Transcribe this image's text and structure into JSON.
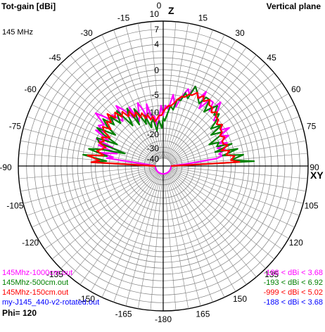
{
  "header": {
    "title_left": "Tot-gain [dBi]",
    "title_right": "Vertical plane",
    "frequency": "145 MHz"
  },
  "axes": {
    "z_label": "Z",
    "xy_label": "XY",
    "angle_labels": [
      "0",
      "15",
      "30",
      "45",
      "60",
      "75",
      "90",
      "105",
      "120",
      "135",
      "150",
      "165",
      "-180",
      "-165",
      "-150",
      "-135",
      "-120",
      "-105",
      "-90",
      "-75",
      "-60",
      "-45",
      "-30",
      "-15"
    ],
    "gain_ticks": [
      "10",
      "7",
      "4",
      "0",
      "-5",
      "-10",
      "-20",
      "-30",
      "-40"
    ]
  },
  "legend": [
    {
      "name": "145Mhz-1000cm.out",
      "range": "-188 < dBi < 3.68",
      "color": "#ff00ff"
    },
    {
      "name": "145Mhz-500cm.out",
      "range": "-193 < dBi < 6.92",
      "color": "#008000"
    },
    {
      "name": "145Mhz-150cm.out",
      "range": "-999 < dBi < 5.02",
      "color": "#ff0000"
    },
    {
      "name": "my-J145_440-v2-rotated.out",
      "range": "-188 < dBi < 3.68",
      "color": "#0000ff"
    }
  ],
  "footer": {
    "phi": "Phi= 120"
  },
  "chart_data": {
    "type": "line",
    "subtype": "polar",
    "title": "Tot-gain [dBi]",
    "subtitle": "Vertical plane",
    "angle_unit": "deg",
    "zero_direction": "top (Z)",
    "radial_ticks_dbi": [
      10,
      7,
      4,
      0,
      -5,
      -10,
      -20,
      -30,
      -40
    ],
    "grid": true,
    "legend_placement": "bottom",
    "series": [
      {
        "name": "145Mhz-1000cm.out",
        "color": "#ff00ff",
        "angles": [
          -90,
          -85,
          -82,
          -80,
          -78,
          -75,
          -72,
          -70,
          -68,
          -65,
          -62,
          -60,
          -58,
          -55,
          -52,
          -50,
          -48,
          -45,
          -42,
          -40,
          -38,
          -35,
          -32,
          -30,
          -28,
          -25,
          -22,
          -20,
          -18,
          -15,
          -12,
          -10,
          -8,
          -5,
          -2,
          0,
          2,
          5,
          8,
          10,
          12,
          15,
          18,
          20,
          22,
          25,
          28,
          30,
          32,
          35,
          38,
          40,
          42,
          45,
          48,
          50,
          52,
          55,
          58,
          60,
          62,
          65,
          68,
          70,
          72,
          75,
          78,
          80,
          82,
          85,
          90,
          95,
          100,
          110,
          120,
          130,
          140,
          150,
          160,
          170,
          180,
          -170,
          -160,
          -150,
          -140,
          -130,
          -120,
          -110,
          -100,
          -95
        ],
        "gain": [
          -40,
          -30,
          -6,
          -8,
          -4,
          -9,
          -3,
          -7,
          -2,
          -5,
          -1,
          -3,
          -1,
          -2,
          1,
          -1,
          -3,
          -2,
          -5,
          -4,
          -1,
          -3,
          -6,
          -3,
          -8,
          -6,
          -3,
          -5,
          -8,
          -4,
          -10,
          -8,
          -12,
          -9,
          -5,
          -8,
          -5,
          -6,
          -2,
          -4,
          -5,
          -2,
          0,
          -1,
          1,
          0,
          -1,
          1,
          -3,
          0,
          0,
          -2,
          1,
          -1,
          -3,
          -2,
          -3,
          -2,
          -3,
          -1,
          -4,
          -2,
          -5,
          -3,
          -6,
          -4,
          -6,
          -5,
          -7,
          -22,
          -40,
          -40,
          -40,
          -40,
          -40,
          -40,
          -40,
          -40,
          -40,
          -40,
          -40,
          -40,
          -40,
          -40,
          -40,
          -40,
          -40,
          -40,
          -40,
          -40
        ]
      },
      {
        "name": "145Mhz-500cm.out",
        "color": "#008000",
        "angles": [
          -90,
          -87,
          -85,
          -82,
          -80,
          -77,
          -75,
          -72,
          -70,
          -67,
          -65,
          -62,
          -60,
          -57,
          -55,
          -52,
          -50,
          -47,
          -45,
          -42,
          -40,
          -37,
          -35,
          -32,
          -30,
          -27,
          -25,
          -22,
          -20,
          -17,
          -15,
          -12,
          -10,
          -7,
          -5,
          -2,
          0,
          2,
          5,
          7,
          10,
          12,
          15,
          17,
          20,
          22,
          25,
          27,
          30,
          32,
          35,
          37,
          40,
          42,
          45,
          47,
          50,
          52,
          55,
          57,
          60,
          62,
          65,
          67,
          70,
          72,
          75,
          77,
          80,
          82,
          85,
          87,
          90
        ],
        "gain": [
          -40,
          -2,
          -6,
          0,
          -6,
          -1,
          -4,
          -12,
          -3,
          -2,
          -8,
          -3,
          -1,
          -6,
          -3,
          -1,
          -4,
          -2,
          -5,
          -3,
          -2,
          -8,
          -5,
          -3,
          -9,
          -4,
          -6,
          -10,
          -7,
          -12,
          -10,
          -9,
          -14,
          -11,
          -10,
          -13,
          -9,
          -10,
          -7,
          -5,
          -6,
          -3,
          -3,
          -1,
          -2,
          1,
          0,
          -1,
          -2,
          0,
          0,
          -3,
          -1,
          0,
          -2,
          -1,
          -3,
          -5,
          -2,
          -6,
          -3,
          -4,
          -8,
          -5,
          -6,
          -2,
          -7,
          -1,
          -5,
          0,
          -3,
          2,
          -40
        ]
      },
      {
        "name": "145Mhz-150cm.out",
        "color": "#ff0000",
        "angles": [
          -90,
          -87,
          -85,
          -82,
          -80,
          -77,
          -75,
          -72,
          -70,
          -67,
          -65,
          -62,
          -60,
          -57,
          -55,
          -52,
          -50,
          -47,
          -45,
          -42,
          -40,
          -37,
          -35,
          -32,
          -30,
          -27,
          -25,
          -22,
          -20,
          -17,
          -15,
          -12,
          -10,
          -7,
          -5,
          -2,
          0,
          2,
          5,
          7,
          10,
          12,
          15,
          17,
          20,
          22,
          25,
          27,
          30,
          32,
          35,
          37,
          40,
          42,
          45,
          47,
          50,
          52,
          55,
          57,
          60,
          62,
          65,
          67,
          70,
          72,
          75,
          77,
          80,
          82,
          85,
          87,
          90
        ],
        "gain": [
          -40,
          -2,
          -4,
          -1,
          -5,
          -3,
          -4,
          -5,
          -3,
          -4,
          -3,
          -5,
          -3,
          -2,
          -4,
          -2,
          -3,
          -1,
          -3,
          -2,
          -4,
          -3,
          -5,
          -4,
          -6,
          -5,
          -7,
          -6,
          -8,
          -7,
          -9,
          -8,
          -10,
          -9,
          -8,
          -8,
          -7,
          -6,
          -5,
          -5,
          -4,
          -3,
          -2,
          -2,
          -1,
          -1,
          0,
          -1,
          0,
          -1,
          0,
          -1,
          -1,
          -2,
          -1,
          -2,
          -2,
          -3,
          -2,
          -3,
          -3,
          -4,
          -3,
          -4,
          -4,
          -3,
          -5,
          -3,
          -4,
          -2,
          -3,
          -1,
          -40
        ]
      }
    ]
  }
}
